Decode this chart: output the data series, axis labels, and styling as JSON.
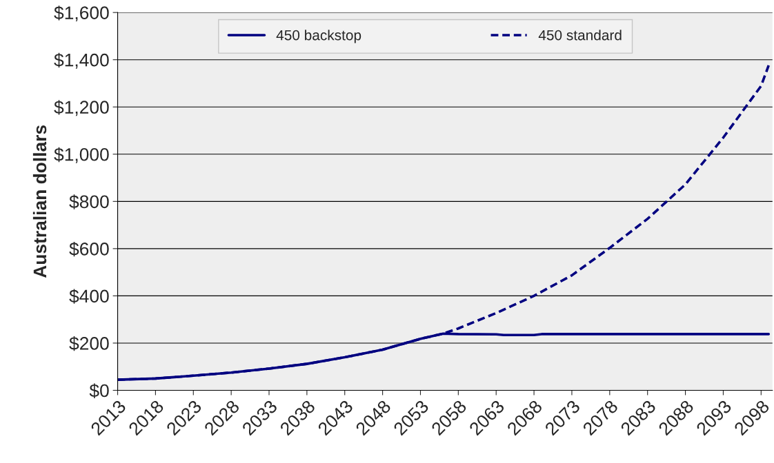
{
  "chart_data": {
    "type": "line",
    "ylabel": "Australian dollars",
    "series": [
      {
        "name": "450 backstop",
        "color": "#000080",
        "line_style": "solid",
        "x": [
          2013,
          2018,
          2023,
          2028,
          2033,
          2038,
          2043,
          2048,
          2053,
          2056,
          2058,
          2063,
          2064,
          2068,
          2069,
          2099
        ],
        "values": [
          45,
          50,
          62,
          75,
          92,
          112,
          140,
          172,
          218,
          240,
          238,
          237,
          234,
          234,
          238,
          238
        ]
      },
      {
        "name": "450 standard",
        "color": "#000080",
        "line_style": "dashed",
        "x": [
          2013,
          2018,
          2023,
          2028,
          2033,
          2038,
          2043,
          2048,
          2053,
          2056,
          2058,
          2063,
          2068,
          2073,
          2078,
          2083,
          2088,
          2093,
          2098,
          2099
        ],
        "values": [
          45,
          50,
          62,
          75,
          92,
          112,
          140,
          172,
          218,
          240,
          262,
          327,
          400,
          487,
          603,
          726,
          872,
          1070,
          1289,
          1376
        ]
      }
    ],
    "xlim": [
      2013,
      2099.5
    ],
    "xticks": [
      2013,
      2018,
      2023,
      2028,
      2033,
      2038,
      2043,
      2048,
      2053,
      2058,
      2063,
      2068,
      2073,
      2078,
      2083,
      2088,
      2093,
      2098
    ],
    "ylim": [
      0,
      1600
    ],
    "yticks": [
      {
        "value": 0,
        "label": "$0"
      },
      {
        "value": 200,
        "label": "$200"
      },
      {
        "value": 400,
        "label": "$400"
      },
      {
        "value": 600,
        "label": "$600"
      },
      {
        "value": 800,
        "label": "$800"
      },
      {
        "value": 1000,
        "label": "$1,000"
      },
      {
        "value": 1200,
        "label": "$1,200"
      },
      {
        "value": 1400,
        "label": "$1,400"
      },
      {
        "value": 1600,
        "label": "$1,600"
      }
    ],
    "grid": "y",
    "legend": "top",
    "marker": "none"
  }
}
